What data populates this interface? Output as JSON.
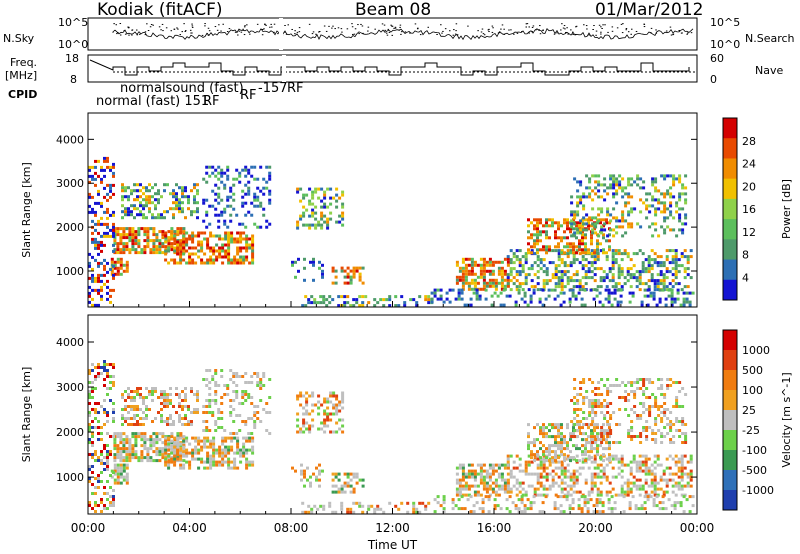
{
  "header": {
    "station": "Kodiak (fitACF)",
    "beam": "Beam 08",
    "date": "01/Mar/2012"
  },
  "labels": {
    "nsky": "N.Sky",
    "nsearch": "N.Search",
    "freq": "Freq.",
    "freq_unit": "[MHz]",
    "nave": "Nave",
    "cpid": "CPID"
  },
  "cpid_labels": {
    "a": "normal (fast) 151",
    "a_rf": "RF",
    "b": "normalsound (fast)",
    "b_rf": "RF",
    "c": "-157",
    "c_rf": "RF"
  },
  "colors": {
    "power": [
      "#1414d2",
      "#2d6fb4",
      "#4e9a6a",
      "#5cbf5c",
      "#8fd14a",
      "#f0c000",
      "#f08c00",
      "#e84a00",
      "#d40000"
    ],
    "velocity": [
      "#1f3fae",
      "#2f70b8",
      "#3a9a52",
      "#6cd04a",
      "#bfbfbf",
      "#f0a020",
      "#f07c10",
      "#e04010",
      "#d40000"
    ]
  },
  "chart_data": [
    {
      "type": "line",
      "name": "N.Sky / N.Search",
      "y_left_ticks": [
        "10^5",
        "10^0"
      ],
      "y_right_ticks": [
        "10^5",
        "10^0"
      ]
    },
    {
      "type": "line",
      "name": "Freq / Nave",
      "ylabel": "Freq. [MHz]",
      "y_left_ticks": [
        18,
        8
      ],
      "y_right_ticks": [
        60,
        0
      ]
    },
    {
      "type": "heatmap",
      "ylabel": "Slant Range [km]",
      "ylim": [
        180,
        4600
      ],
      "y_ticks": [
        1000,
        2000,
        3000,
        4000
      ],
      "xlim": [
        0,
        24
      ],
      "colorbar_label": "Power [dB]",
      "colorbar_ticks": [
        4,
        8,
        12,
        16,
        20,
        24,
        28
      ]
    },
    {
      "type": "heatmap",
      "ylabel": "Slant Range [km]",
      "xlabel": "Time UT",
      "ylim": [
        180,
        4600
      ],
      "y_ticks": [
        1000,
        2000,
        3000,
        4000
      ],
      "xlim": [
        0,
        24
      ],
      "x_ticks": [
        "00:00",
        "04:00",
        "08:00",
        "12:00",
        "16:00",
        "20:00",
        "00:00"
      ],
      "colorbar_label": "Velocity [m s^-1]",
      "colorbar_ticks": [
        "1000",
        "500",
        "100",
        "25",
        "-25",
        "-100",
        "-500",
        "-1000"
      ]
    }
  ]
}
